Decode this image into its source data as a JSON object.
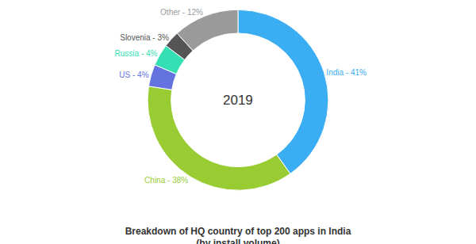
{
  "chart_data": {
    "type": "pie",
    "title": "Breakdown of HQ country of top 200 apps in India",
    "subtitle": "(by install volume)",
    "annotations": [
      "2019"
    ],
    "categories": [
      "India",
      "China",
      "US",
      "Russia",
      "Slovenia",
      "Other"
    ],
    "values": [
      41,
      38,
      4,
      4,
      3,
      12
    ],
    "value_labels": [
      "India - 41%",
      "China - 38%",
      "US - 4%",
      "Russia - 4%",
      "Slovenia - 3%",
      "Other - 12%"
    ],
    "colors": [
      "#3badf3",
      "#99cc33",
      "#6372de",
      "#33dfb3",
      "#555555",
      "#9a9a9a"
    ],
    "data_labels": true
  }
}
